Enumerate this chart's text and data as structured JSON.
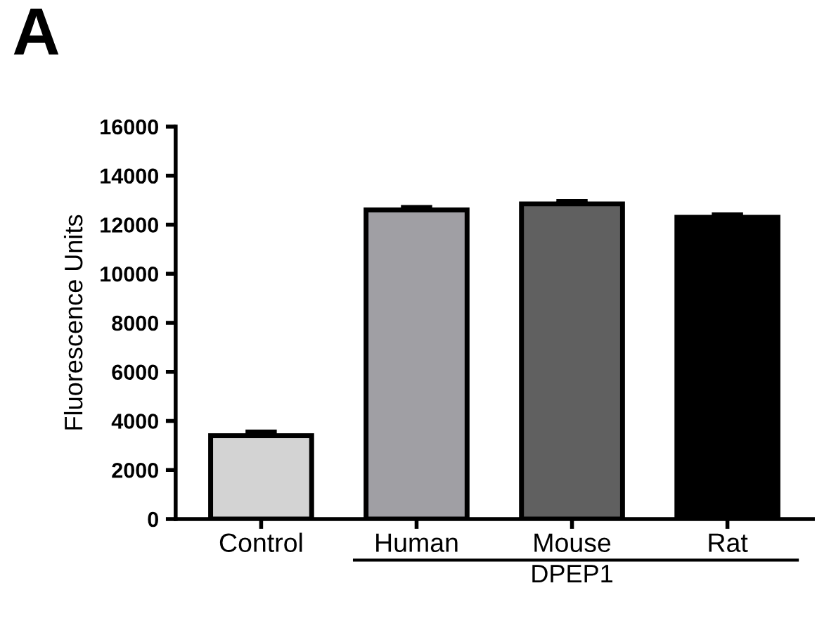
{
  "chart_data": {
    "type": "bar",
    "ylabel": "Fluorescence Units",
    "categories": [
      "Control",
      "Human",
      "Mouse",
      "Rat"
    ],
    "values": [
      3400,
      12600,
      12850,
      12300
    ],
    "errors": [
      150,
      100,
      100,
      100
    ],
    "colors": [
      "#d3d3d3",
      "#a09fa4",
      "#606060",
      "#000000"
    ],
    "ylim": [
      0,
      16000
    ],
    "yticks": [
      0,
      2000,
      4000,
      6000,
      8000,
      10000,
      12000,
      14000,
      16000
    ],
    "grid": false,
    "annotations": [
      "A",
      "DPEP1"
    ]
  }
}
